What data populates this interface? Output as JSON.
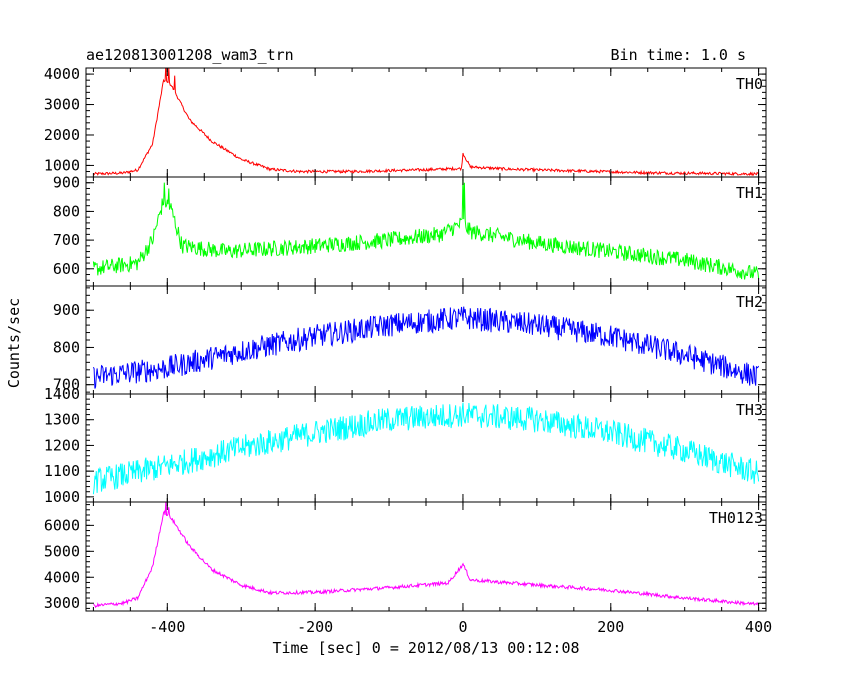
{
  "header": {
    "title": "ae120813001208_wam3_trn",
    "bin_time": "Bin time: 1.0 s"
  },
  "axes": {
    "xlabel": "Time [sec] 0 = 2012/08/13 00:12:08",
    "ylabel": "Counts/sec",
    "xlim": [
      -510,
      410
    ],
    "xticks": [
      "-400",
      "-200",
      "0",
      "200",
      "400"
    ]
  },
  "chart_data": {
    "type": "line",
    "shared_x": true,
    "xlim": [
      -510,
      410
    ],
    "panels": [
      {
        "name": "TH0",
        "color": "#ff0000",
        "ylim": [
          620,
          4200
        ],
        "yticks": [
          "1000",
          "2000",
          "3000",
          "4000"
        ],
        "baseline": [
          [
            -500,
            720
          ],
          [
            -460,
            750
          ],
          [
            -440,
            850
          ],
          [
            -420,
            1700
          ],
          [
            -405,
            3800
          ],
          [
            -395,
            3650
          ],
          [
            -370,
            2500
          ],
          [
            -340,
            1800
          ],
          [
            -300,
            1200
          ],
          [
            -260,
            870
          ],
          [
            -220,
            800
          ],
          [
            -150,
            800
          ],
          [
            -50,
            860
          ],
          [
            -2,
            900
          ],
          [
            0,
            1400
          ],
          [
            10,
            950
          ],
          [
            60,
            880
          ],
          [
            150,
            820
          ],
          [
            250,
            760
          ],
          [
            400,
            720
          ]
        ],
        "noise": 45,
        "spikes": [
          [
            -402,
            4300
          ],
          [
            -398,
            4200
          ],
          [
            -390,
            3950
          ]
        ]
      },
      {
        "name": "TH1",
        "color": "#00ff00",
        "ylim": [
          540,
          920
        ],
        "yticks": [
          "600",
          "700",
          "800",
          "900"
        ],
        "baseline": [
          [
            -500,
            600
          ],
          [
            -440,
            620
          ],
          [
            -420,
            700
          ],
          [
            -405,
            840
          ],
          [
            -395,
            810
          ],
          [
            -380,
            680
          ],
          [
            -320,
            660
          ],
          [
            -200,
            680
          ],
          [
            -100,
            700
          ],
          [
            -30,
            720
          ],
          [
            0,
            760
          ],
          [
            10,
            730
          ],
          [
            100,
            690
          ],
          [
            200,
            660
          ],
          [
            300,
            630
          ],
          [
            400,
            580
          ]
        ],
        "noise": 28,
        "spikes": [
          [
            -404,
            900
          ],
          [
            -398,
            880
          ],
          [
            0,
            930
          ],
          [
            2,
            900
          ]
        ]
      },
      {
        "name": "TH2",
        "color": "#0000ff",
        "ylim": [
          675,
          965
        ],
        "yticks": [
          "700",
          "800",
          "900"
        ],
        "baseline": [
          [
            -500,
            720
          ],
          [
            -400,
            745
          ],
          [
            -300,
            790
          ],
          [
            -200,
            830
          ],
          [
            -100,
            860
          ],
          [
            0,
            880
          ],
          [
            100,
            860
          ],
          [
            200,
            830
          ],
          [
            300,
            780
          ],
          [
            400,
            720
          ]
        ],
        "noise": 32,
        "spikes": []
      },
      {
        "name": "TH3",
        "color": "#00ffff",
        "ylim": [
          980,
          1400
        ],
        "yticks": [
          "1000",
          "1100",
          "1200",
          "1300",
          "1400"
        ],
        "baseline": [
          [
            -500,
            1060
          ],
          [
            -400,
            1120
          ],
          [
            -300,
            1190
          ],
          [
            -200,
            1250
          ],
          [
            -100,
            1300
          ],
          [
            0,
            1320
          ],
          [
            100,
            1300
          ],
          [
            200,
            1250
          ],
          [
            300,
            1180
          ],
          [
            400,
            1090
          ]
        ],
        "noise": 50,
        "spikes": []
      },
      {
        "name": "TH0123",
        "color": "#ff00ff",
        "ylim": [
          2700,
          6900
        ],
        "yticks": [
          "3000",
          "4000",
          "5000",
          "6000"
        ],
        "baseline": [
          [
            -500,
            2900
          ],
          [
            -460,
            3000
          ],
          [
            -440,
            3200
          ],
          [
            -420,
            4400
          ],
          [
            -405,
            6500
          ],
          [
            -395,
            6300
          ],
          [
            -370,
            5200
          ],
          [
            -340,
            4300
          ],
          [
            -300,
            3700
          ],
          [
            -260,
            3400
          ],
          [
            -200,
            3420
          ],
          [
            -100,
            3600
          ],
          [
            -20,
            3780
          ],
          [
            0,
            4500
          ],
          [
            10,
            3900
          ],
          [
            100,
            3700
          ],
          [
            200,
            3500
          ],
          [
            300,
            3200
          ],
          [
            400,
            2950
          ]
        ],
        "noise": 65,
        "spikes": [
          [
            -402,
            6900
          ],
          [
            -398,
            6700
          ]
        ]
      }
    ]
  }
}
